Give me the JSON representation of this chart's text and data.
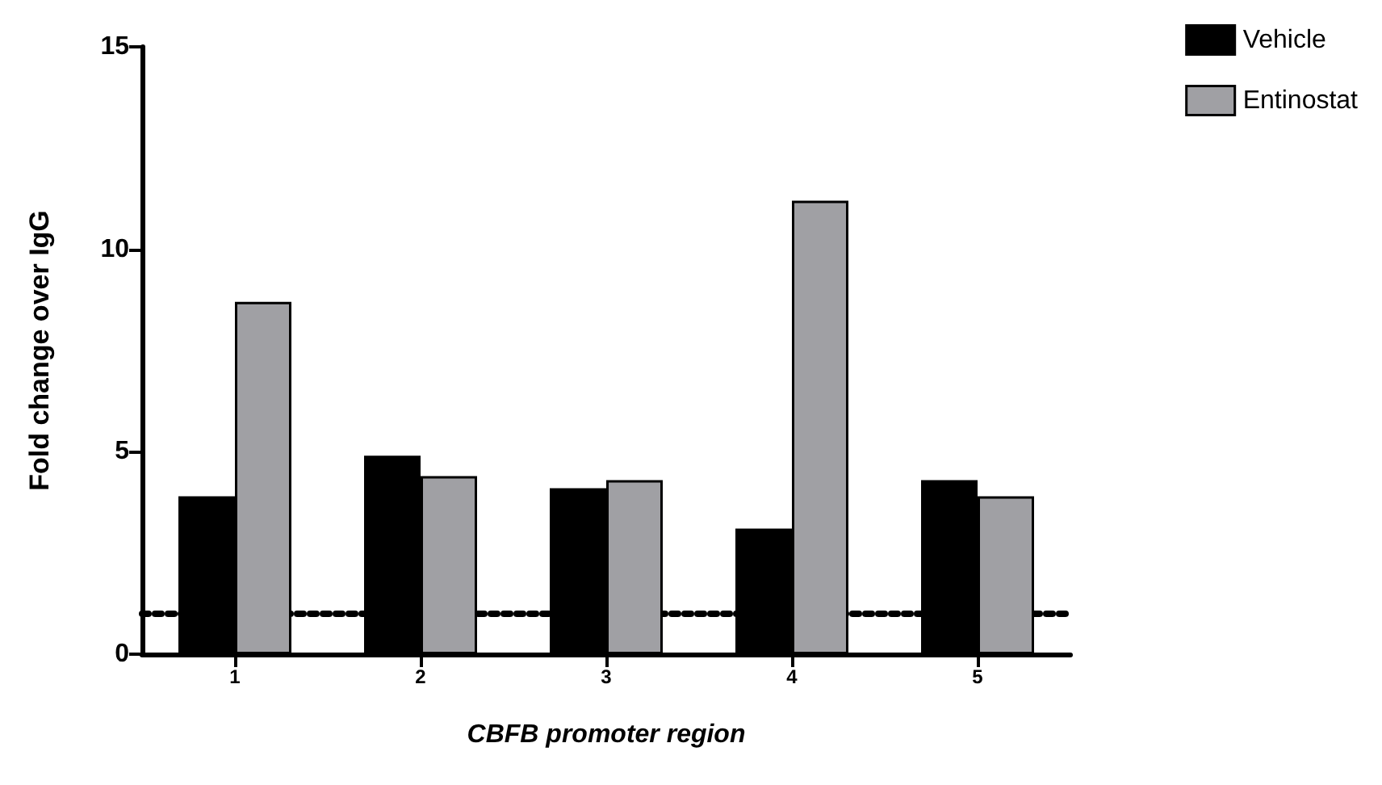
{
  "chart_data": {
    "type": "bar",
    "xlabel": "CBFB promoter region",
    "ylabel": "Fold change over IgG",
    "categories": [
      "1",
      "2",
      "3",
      "4",
      "5"
    ],
    "series": [
      {
        "name": "Vehicle",
        "color": "#000000",
        "values": [
          3.9,
          4.9,
          4.1,
          3.1,
          4.3
        ]
      },
      {
        "name": "Entinostat",
        "color": "#a0a0a4",
        "values": [
          8.7,
          4.4,
          4.3,
          11.2,
          3.9
        ]
      }
    ],
    "ylim": [
      0,
      15
    ],
    "yticks": [
      0,
      5,
      10,
      15
    ],
    "grid": false,
    "legend": "top right",
    "ref_lines": [
      {
        "axis": "y",
        "value": 1,
        "line_style": "dotted",
        "color": "#000000"
      }
    ]
  }
}
